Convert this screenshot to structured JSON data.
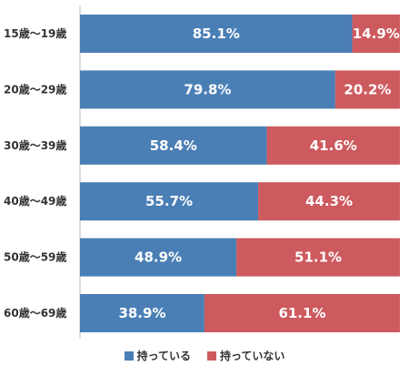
{
  "chart_data": {
    "type": "bar",
    "orientation": "horizontal",
    "stacked": true,
    "categories": [
      "15歳〜19歳",
      "20歳〜29歳",
      "30歳〜39歳",
      "40歳〜49歳",
      "50歳〜59歳",
      "60歳〜69歳"
    ],
    "series": [
      {
        "name": "持っている",
        "color": "#4a7fb5",
        "values": [
          85.1,
          79.8,
          58.4,
          55.7,
          48.9,
          38.9
        ],
        "labels": [
          "85.1%",
          "79.8%",
          "58.4%",
          "55.7%",
          "48.9%",
          "38.9%"
        ]
      },
      {
        "name": "持っていない",
        "color": "#cd5a5e",
        "values": [
          14.9,
          20.2,
          41.6,
          44.3,
          51.1,
          61.1
        ],
        "labels": [
          "14.9%",
          "20.2%",
          "41.6%",
          "44.3%",
          "51.1%",
          "61.1%"
        ]
      }
    ],
    "xlim": [
      0,
      100
    ],
    "legend_position": "bottom"
  }
}
